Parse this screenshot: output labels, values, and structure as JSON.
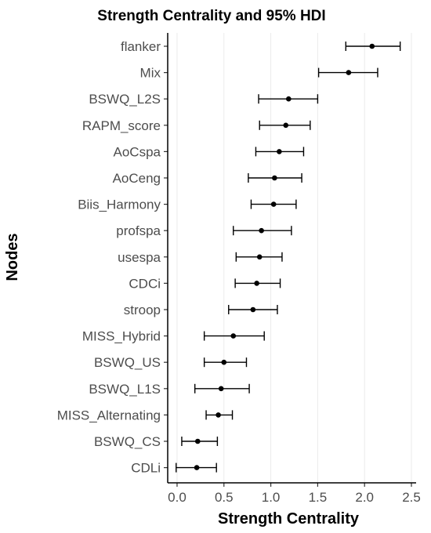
{
  "chart_data": {
    "type": "scatter",
    "title": "Strength Centrality and 95% HDI",
    "xlabel": "Strength Centrality",
    "ylabel": "Nodes",
    "xlim": [
      -0.1,
      2.55
    ],
    "xticks": [
      0.0,
      0.5,
      1.0,
      1.5,
      2.0,
      2.5
    ],
    "xtick_labels": [
      "0.0",
      "0.5",
      "1.0",
      "1.5",
      "2.0",
      "2.5"
    ],
    "grid": "vertical major gridlines only",
    "legend": "none",
    "nodes": [
      "flanker",
      "Mix",
      "BSWQ_L2S",
      "RAPM_score",
      "AoCspa",
      "AoCeng",
      "Biis_Harmony",
      "profspa",
      "usespa",
      "CDCi",
      "stroop",
      "MISS_Hybrid",
      "BSWQ_US",
      "BSWQ_L1S",
      "MISS_Alternating",
      "BSWQ_CS",
      "CDLi"
    ],
    "estimate": [
      2.08,
      1.83,
      1.19,
      1.16,
      1.09,
      1.04,
      1.03,
      0.9,
      0.88,
      0.85,
      0.81,
      0.6,
      0.5,
      0.47,
      0.44,
      0.22,
      0.21
    ],
    "hdi_lower": [
      1.8,
      1.51,
      0.87,
      0.88,
      0.84,
      0.76,
      0.79,
      0.6,
      0.63,
      0.62,
      0.55,
      0.29,
      0.29,
      0.19,
      0.31,
      0.05,
      -0.01
    ],
    "hdi_upper": [
      2.38,
      2.14,
      1.5,
      1.42,
      1.35,
      1.33,
      1.27,
      1.22,
      1.12,
      1.1,
      1.07,
      0.93,
      0.74,
      0.77,
      0.59,
      0.43,
      0.42
    ]
  }
}
